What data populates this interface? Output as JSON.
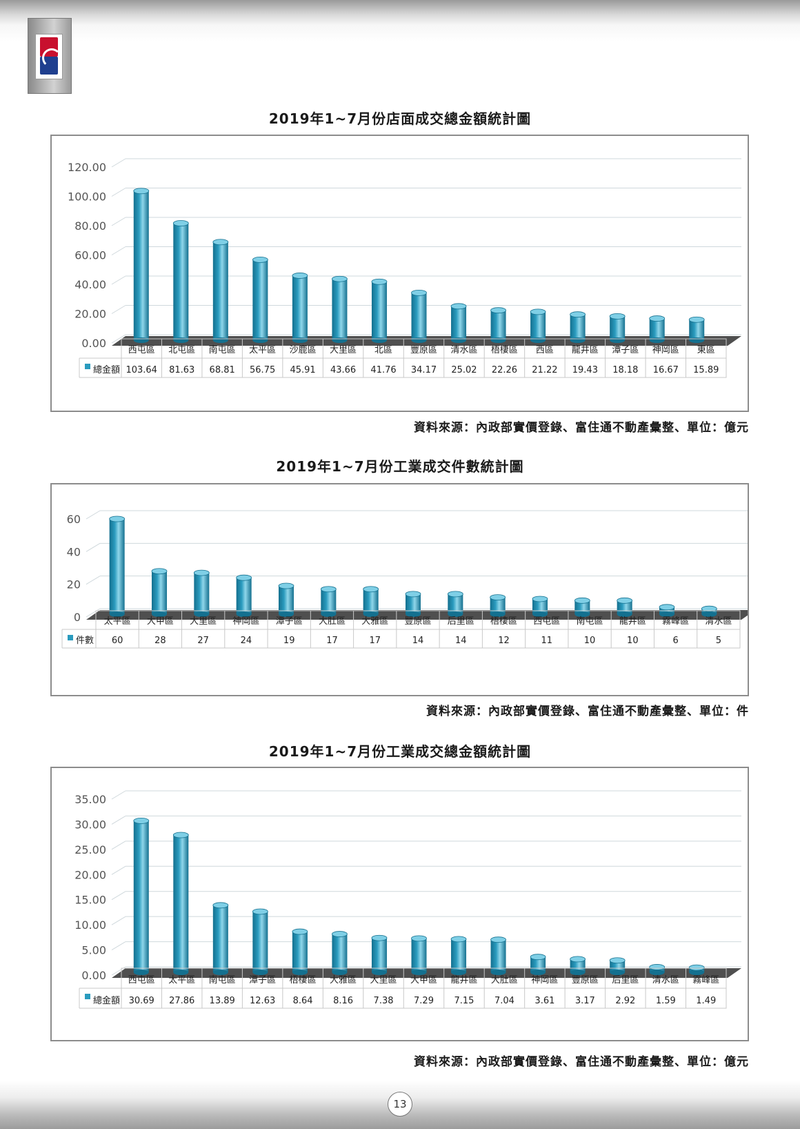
{
  "page": {
    "page_number": "13",
    "brand_colors": {
      "bar": "#2a9bbe",
      "bar_dark": "#14708f",
      "logo_red": "#c8102e",
      "logo_blue": "#1f3f8f"
    }
  },
  "logo": {
    "icon": "company-logo"
  },
  "charts": [
    {
      "title": "2019年1~7月份店面成交總金額統計圖",
      "source": "資料來源：內政部實價登錄、富住通不動產彙整、單位：億元"
    },
    {
      "title": "2019年1~7月份工業成交件數統計圖",
      "source": "資料來源：內政部實價登錄、富住通不動產彙整、單位：件"
    },
    {
      "title": "2019年1~7月份工業成交總金額統計圖",
      "source": "資料來源：內政部實價登錄、富住通不動產彙整、單位：億元"
    }
  ],
  "chart_data": [
    {
      "type": "bar",
      "title": "2019年1~7月份店面成交總金額統計圖",
      "categories": [
        "西屯區",
        "北屯區",
        "南屯區",
        "太平區",
        "沙鹿區",
        "大里區",
        "北區",
        "豐原區",
        "清水區",
        "梧棲區",
        "西區",
        "龍井區",
        "潭子區",
        "神岡區",
        "東區"
      ],
      "series": [
        {
          "name": "總金額",
          "values": [
            103.64,
            81.63,
            68.81,
            56.75,
            45.91,
            43.66,
            41.76,
            34.17,
            25.02,
            22.26,
            21.22,
            19.43,
            18.18,
            16.67,
            15.89
          ]
        }
      ],
      "value_labels": [
        "103.64",
        "81.63",
        "68.81",
        "56.75",
        "45.91",
        "43.66",
        "41.76",
        "34.17",
        "25.02",
        "22.26",
        "21.22",
        "19.43",
        "18.18",
        "16.67",
        "15.89"
      ],
      "yticks": [
        "0.00",
        "20.00",
        "40.00",
        "60.00",
        "80.00",
        "100.00",
        "120.00"
      ],
      "ylim": [
        0,
        120
      ],
      "grid": true,
      "legend": "data-table"
    },
    {
      "type": "bar",
      "title": "2019年1~7月份工業成交件數統計圖",
      "categories": [
        "太平區",
        "大甲區",
        "大里區",
        "神岡區",
        "潭子區",
        "大肚區",
        "大雅區",
        "豐原區",
        "后里區",
        "梧棲區",
        "西屯區",
        "南屯區",
        "龍井區",
        "霧峰區",
        "清水區"
      ],
      "series": [
        {
          "name": "件數",
          "values": [
            60,
            28,
            27,
            24,
            19,
            17,
            17,
            14,
            14,
            12,
            11,
            10,
            10,
            6,
            5
          ]
        }
      ],
      "value_labels": [
        "60",
        "28",
        "27",
        "24",
        "19",
        "17",
        "17",
        "14",
        "14",
        "12",
        "11",
        "10",
        "10",
        "6",
        "5"
      ],
      "yticks": [
        "0",
        "20",
        "40",
        "60"
      ],
      "ylim": [
        0,
        60
      ],
      "grid": true,
      "legend": "data-table"
    },
    {
      "type": "bar",
      "title": "2019年1~7月份工業成交總金額統計圖",
      "categories": [
        "西屯區",
        "太平區",
        "南屯區",
        "潭子區",
        "梧棲區",
        "大雅區",
        "大里區",
        "大甲區",
        "龍井區",
        "大肚區",
        "神岡區",
        "豐原區",
        "后里區",
        "清水區",
        "霧峰區"
      ],
      "series": [
        {
          "name": "總金額",
          "values": [
            30.69,
            27.86,
            13.89,
            12.63,
            8.64,
            8.16,
            7.38,
            7.29,
            7.15,
            7.04,
            3.61,
            3.17,
            2.92,
            1.59,
            1.49
          ]
        }
      ],
      "value_labels": [
        "30.69",
        "27.86",
        "13.89",
        "12.63",
        "8.64",
        "8.16",
        "7.38",
        "7.29",
        "7.15",
        "7.04",
        "3.61",
        "3.17",
        "2.92",
        "1.59",
        "1.49"
      ],
      "yticks": [
        "0.00",
        "5.00",
        "10.00",
        "15.00",
        "20.00",
        "25.00",
        "30.00",
        "35.00"
      ],
      "ylim": [
        0,
        35
      ],
      "grid": true,
      "legend": "data-table"
    }
  ]
}
